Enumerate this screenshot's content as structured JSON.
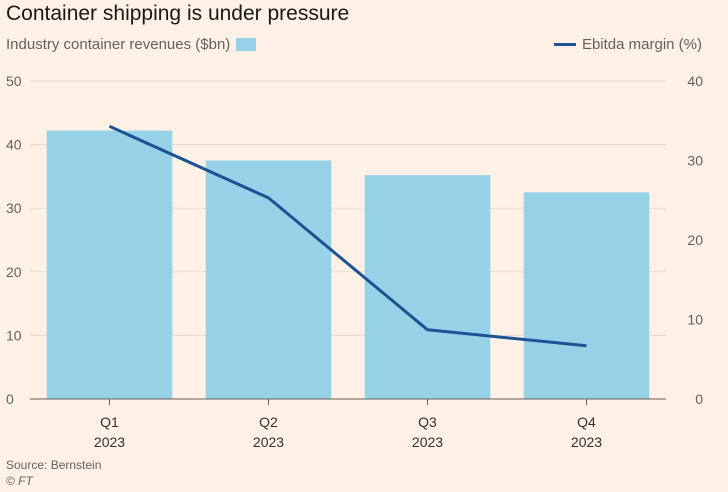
{
  "chart_data": {
    "type": "bar",
    "title": "Container shipping is under pressure",
    "categories": [
      {
        "quarter": "Q1",
        "year": "2023"
      },
      {
        "quarter": "Q2",
        "year": "2023"
      },
      {
        "quarter": "Q3",
        "year": "2023"
      },
      {
        "quarter": "Q4",
        "year": "2023"
      }
    ],
    "series": [
      {
        "name": "Industry container revenues ($bn)",
        "type": "bar",
        "axis": "left",
        "color": "#96d1e8",
        "values": [
          42.2,
          37.5,
          35.2,
          32.5
        ]
      },
      {
        "name": "Ebitda margin (%)",
        "type": "line",
        "axis": "right",
        "color": "#1c5493",
        "values": [
          34.3,
          25.3,
          8.7,
          6.7
        ]
      }
    ],
    "y_left": {
      "ylim": [
        0,
        50
      ],
      "ticks": [
        "0",
        "10",
        "20",
        "30",
        "40",
        "50"
      ]
    },
    "y_right": {
      "ylim": [
        0,
        40
      ],
      "ticks": [
        "0",
        "10",
        "20",
        "30",
        "40"
      ]
    },
    "grid": true,
    "legend_placement": "top",
    "source": "Source: Bernstein",
    "credit": "© FT"
  }
}
